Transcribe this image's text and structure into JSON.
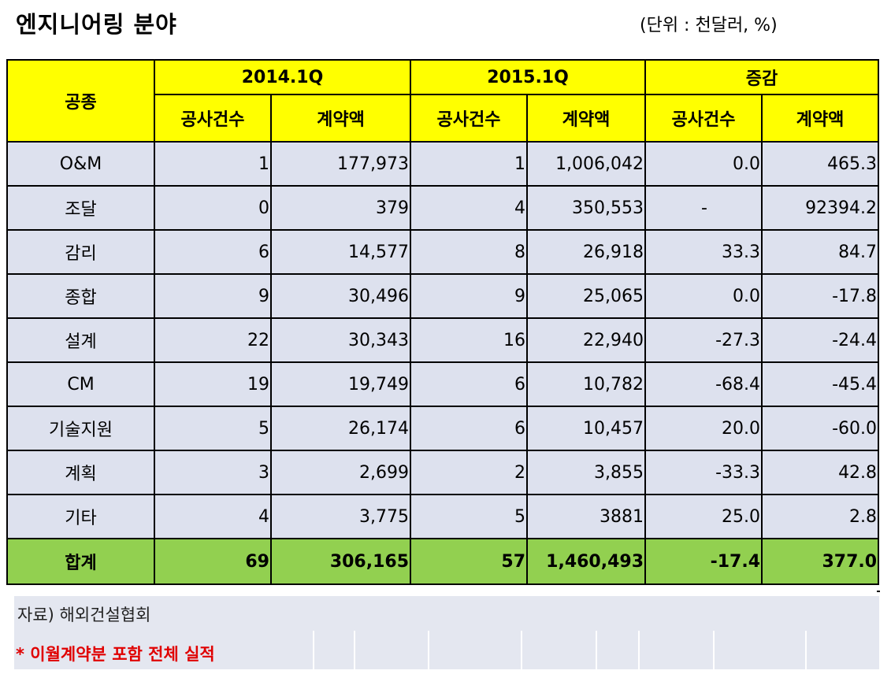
{
  "title": "엔지니어링 분야",
  "unit": "(단위 : 천달러, %)",
  "header": {
    "category": "공종",
    "period1": "2014.1Q",
    "period2": "2015.1Q",
    "change": "증감",
    "count": "공사건수",
    "amount": "계약액"
  },
  "rows": [
    {
      "label": "O&M",
      "c14": "1",
      "a14": "177,973",
      "c15": "1",
      "a15": "1,006,042",
      "dc": "0.0",
      "da": "465.3"
    },
    {
      "label": "조달",
      "c14": "0",
      "a14": "379",
      "c15": "4",
      "a15": "350,553",
      "dc": "-",
      "da": "92394.2"
    },
    {
      "label": "감리",
      "c14": "6",
      "a14": "14,577",
      "c15": "8",
      "a15": "26,918",
      "dc": "33.3",
      "da": "84.7"
    },
    {
      "label": "종합",
      "c14": "9",
      "a14": "30,496",
      "c15": "9",
      "a15": "25,065",
      "dc": "0.0",
      "da": "-17.8"
    },
    {
      "label": "설계",
      "c14": "22",
      "a14": "30,343",
      "c15": "16",
      "a15": "22,940",
      "dc": "-27.3",
      "da": "-24.4"
    },
    {
      "label": "CM",
      "c14": "19",
      "a14": "19,749",
      "c15": "6",
      "a15": "10,782",
      "dc": "-68.4",
      "da": "-45.4"
    },
    {
      "label": "기술지원",
      "c14": "5",
      "a14": "26,174",
      "c15": "6",
      "a15": "10,457",
      "dc": "20.0",
      "da": "-60.0"
    },
    {
      "label": "계획",
      "c14": "3",
      "a14": "2,699",
      "c15": "2",
      "a15": "3,855",
      "dc": "-33.3",
      "da": "42.8"
    },
    {
      "label": "기타",
      "c14": "4",
      "a14": "3,775",
      "c15": "5",
      "a15": "3881",
      "dc": "25.0",
      "da": "2.8"
    }
  ],
  "total": {
    "label": "합계",
    "c14": "69",
    "a14": "306,165",
    "c15": "57",
    "a15": "1,460,493",
    "dc": "-17.4",
    "da": "377.0"
  },
  "source": "자료) 해외건설협회",
  "note": "* 이월계약분 포함 전체 실적",
  "colors": {
    "header_bg": "#ffff00",
    "total_bg": "#92d050",
    "row_bg": "#dde1ee",
    "note": "#e00000"
  }
}
